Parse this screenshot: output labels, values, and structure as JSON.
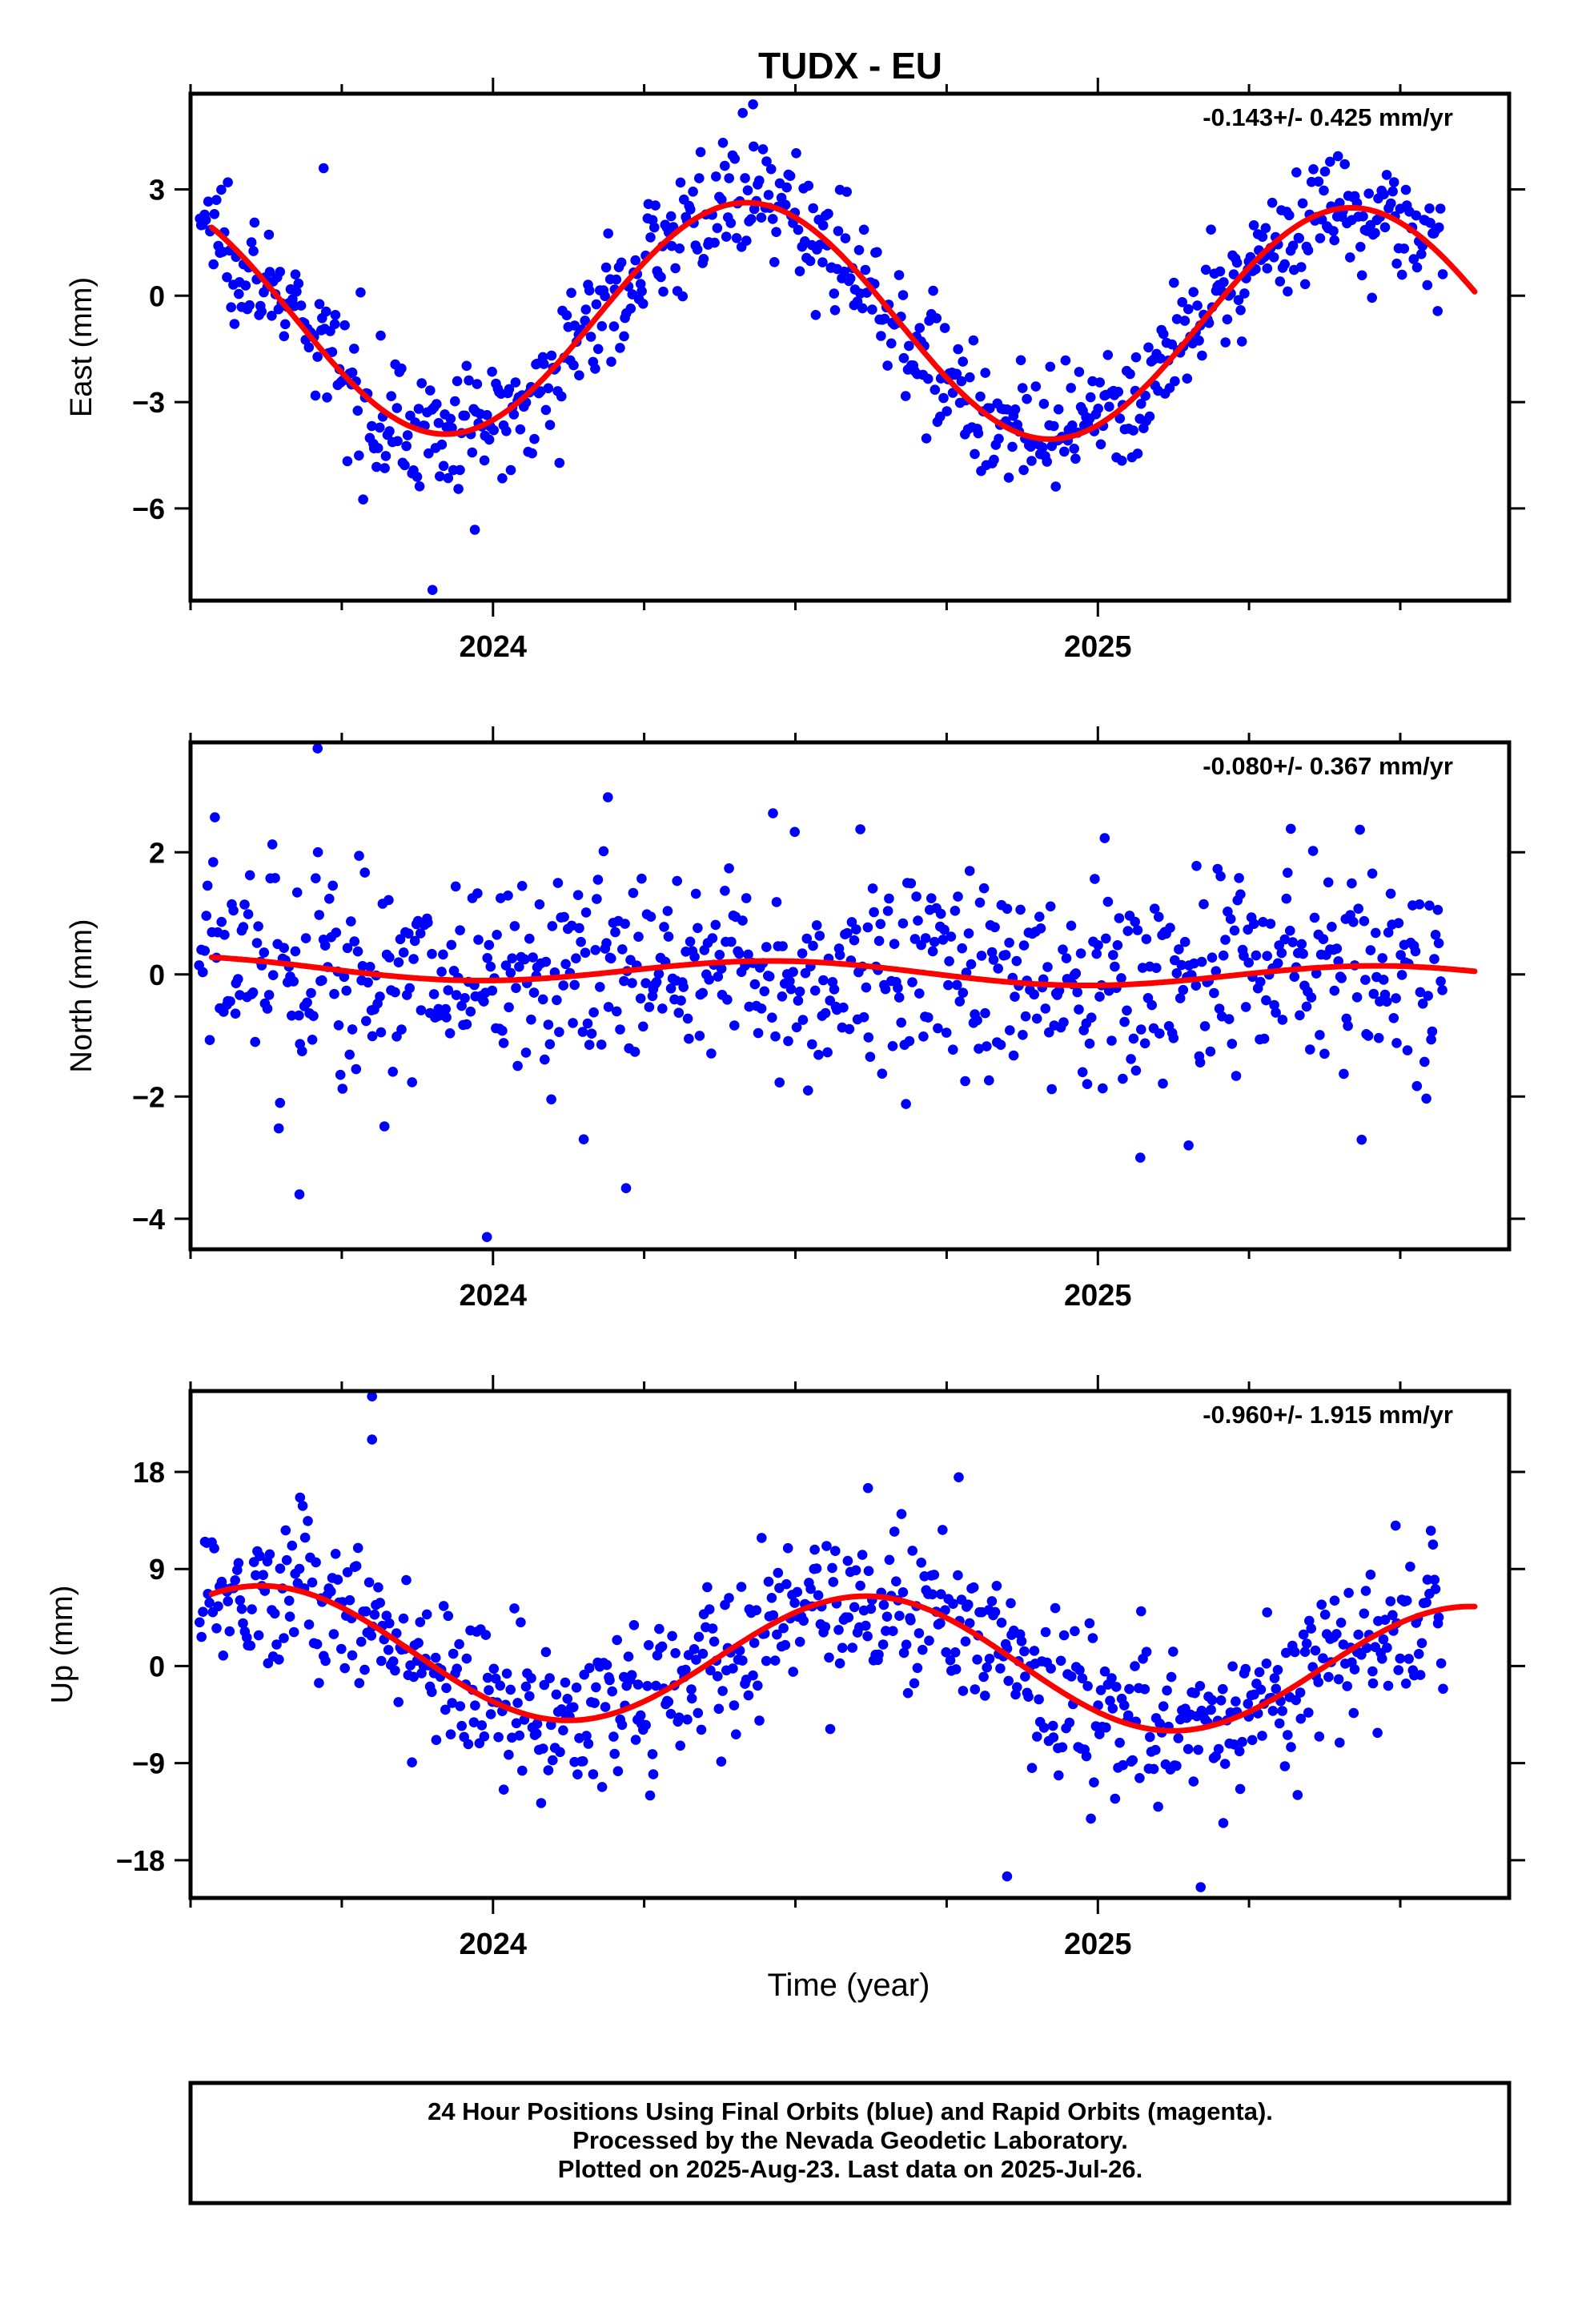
{
  "title": "TUDX - EU",
  "xlabel": "Time (year)",
  "footer": {
    "lines": [
      "24 Hour Positions Using Final Orbits (blue) and Rapid Orbits (magenta).",
      "Processed by the Nevada Geodetic Laboratory.",
      "Plotted on 2025-Aug-23. Last data on 2025-Jul-26."
    ]
  },
  "colors": {
    "final_orbits": "#0000ff",
    "fit_curve": "#ff0000",
    "frame": "#000000"
  },
  "chart_data": [
    {
      "type": "scatter",
      "component": "East",
      "ylabel": "East (mm)",
      "rate_label": "-0.143+/- 0.425 mm/yr",
      "xlim": [
        2023.5,
        2025.68
      ],
      "ylim": [
        -8.6,
        5.7
      ],
      "x_ticks": [
        2024,
        2025
      ],
      "x_tick_labels": [
        "2024",
        "2025"
      ],
      "x_minor_ticks": [
        2023.5,
        2023.75,
        2024.25,
        2024.5,
        2024.75,
        2025.25,
        2025.5
      ],
      "y_ticks": [
        3,
        0,
        -3,
        -6
      ],
      "y_tick_labels": [
        "3",
        "0",
        "−3",
        "−6"
      ],
      "fit": {
        "offset": -0.7,
        "trend": -0.143,
        "ref_epoch": 2024.6,
        "amplitude": 3.3,
        "period": 1.0,
        "peak_epoch": 2024.42
      },
      "scatter_sigma": 0.85,
      "n_points": 740,
      "outliers": [
        [
          2023.9,
          -8.3
        ],
        [
          2023.72,
          3.6
        ],
        [
          2024.43,
          5.4
        ],
        [
          2023.97,
          -6.6
        ]
      ]
    },
    {
      "type": "scatter",
      "component": "North",
      "ylabel": "North (mm)",
      "rate_label": "-0.080+/- 0.367 mm/yr",
      "xlim": [
        2023.5,
        2025.68
      ],
      "ylim": [
        -4.5,
        3.8
      ],
      "x_ticks": [
        2024,
        2025
      ],
      "x_tick_labels": [
        "2024",
        "2025"
      ],
      "x_minor_ticks": [
        2023.5,
        2023.75,
        2024.25,
        2024.5,
        2024.75,
        2025.25,
        2025.5
      ],
      "y_ticks": [
        2,
        0,
        -2,
        -4
      ],
      "y_tick_labels": [
        "2",
        "0",
        "−2",
        "−4"
      ],
      "fit": {
        "offset": 0.03,
        "trend": -0.08,
        "ref_epoch": 2024.6,
        "amplitude": 0.18,
        "period": 1.0,
        "peak_epoch": 2024.47
      },
      "scatter_sigma": 0.9,
      "n_points": 740,
      "outliers": [
        [
          2023.71,
          3.7
        ],
        [
          2023.99,
          -4.3
        ],
        [
          2024.19,
          2.9
        ],
        [
          2023.68,
          -3.6
        ],
        [
          2024.22,
          -3.5
        ],
        [
          2024.15,
          -2.7
        ],
        [
          2025.15,
          -2.8
        ]
      ]
    },
    {
      "type": "scatter",
      "component": "Up",
      "ylabel": "Up (mm)",
      "rate_label": "-0.960+/- 1.915 mm/yr",
      "xlim": [
        2023.5,
        2025.68
      ],
      "ylim": [
        -21.5,
        25.5
      ],
      "x_ticks": [
        2024,
        2025
      ],
      "x_tick_labels": [
        "2024",
        "2025"
      ],
      "x_minor_ticks": [
        2023.5,
        2023.75,
        2024.25,
        2024.5,
        2024.75,
        2025.25,
        2025.5
      ],
      "y_ticks": [
        18,
        9,
        0,
        -9,
        -18
      ],
      "y_tick_labels": [
        "18",
        "9",
        "0",
        "−9",
        "−18"
      ],
      "fit": {
        "offset": 0.5,
        "trend": -0.96,
        "ref_epoch": 2024.6,
        "amplitude": 6.0,
        "period": 1.0,
        "peak_epoch": 2024.62
      },
      "scatter_sigma": 3.6,
      "n_points": 740,
      "outliers": [
        [
          2023.8,
          25.0
        ],
        [
          2023.8,
          21.0
        ],
        [
          2024.77,
          17.5
        ],
        [
          2024.85,
          -19.5
        ],
        [
          2025.17,
          -20.5
        ],
        [
          2024.62,
          16.5
        ]
      ]
    }
  ]
}
